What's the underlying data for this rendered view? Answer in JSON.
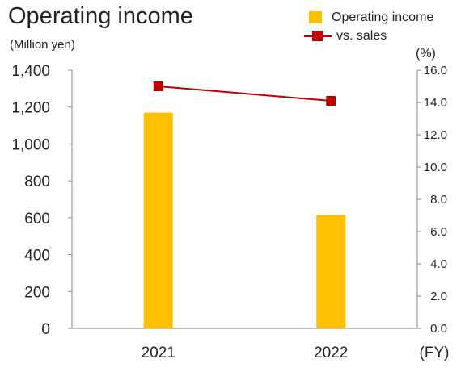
{
  "chart_data": {
    "type": "bar",
    "title": "Operating income",
    "left_unit": "(Million yen)",
    "right_unit": "(%)",
    "x_unit": "(FY)",
    "categories": [
      "2021",
      "2022"
    ],
    "series": [
      {
        "name": "Operating income",
        "kind": "bar",
        "axis": "left",
        "color": "#FFC000",
        "values": [
          1170,
          615
        ]
      },
      {
        "name": "vs. sales",
        "kind": "line",
        "axis": "right",
        "color": "#C00000",
        "values": [
          15.0,
          14.1
        ]
      }
    ],
    "y_left": {
      "min": 0,
      "max": 1400,
      "ticks": [
        "0",
        "200",
        "400",
        "600",
        "800",
        "1,000",
        "1,200",
        "1,400"
      ]
    },
    "y_right": {
      "min": 0,
      "max": 16,
      "ticks": [
        "0.0",
        "2.0",
        "4.0",
        "6.0",
        "8.0",
        "10.0",
        "12.0",
        "14.0",
        "16.0"
      ]
    },
    "grid": false,
    "legend_position": "top-right"
  }
}
